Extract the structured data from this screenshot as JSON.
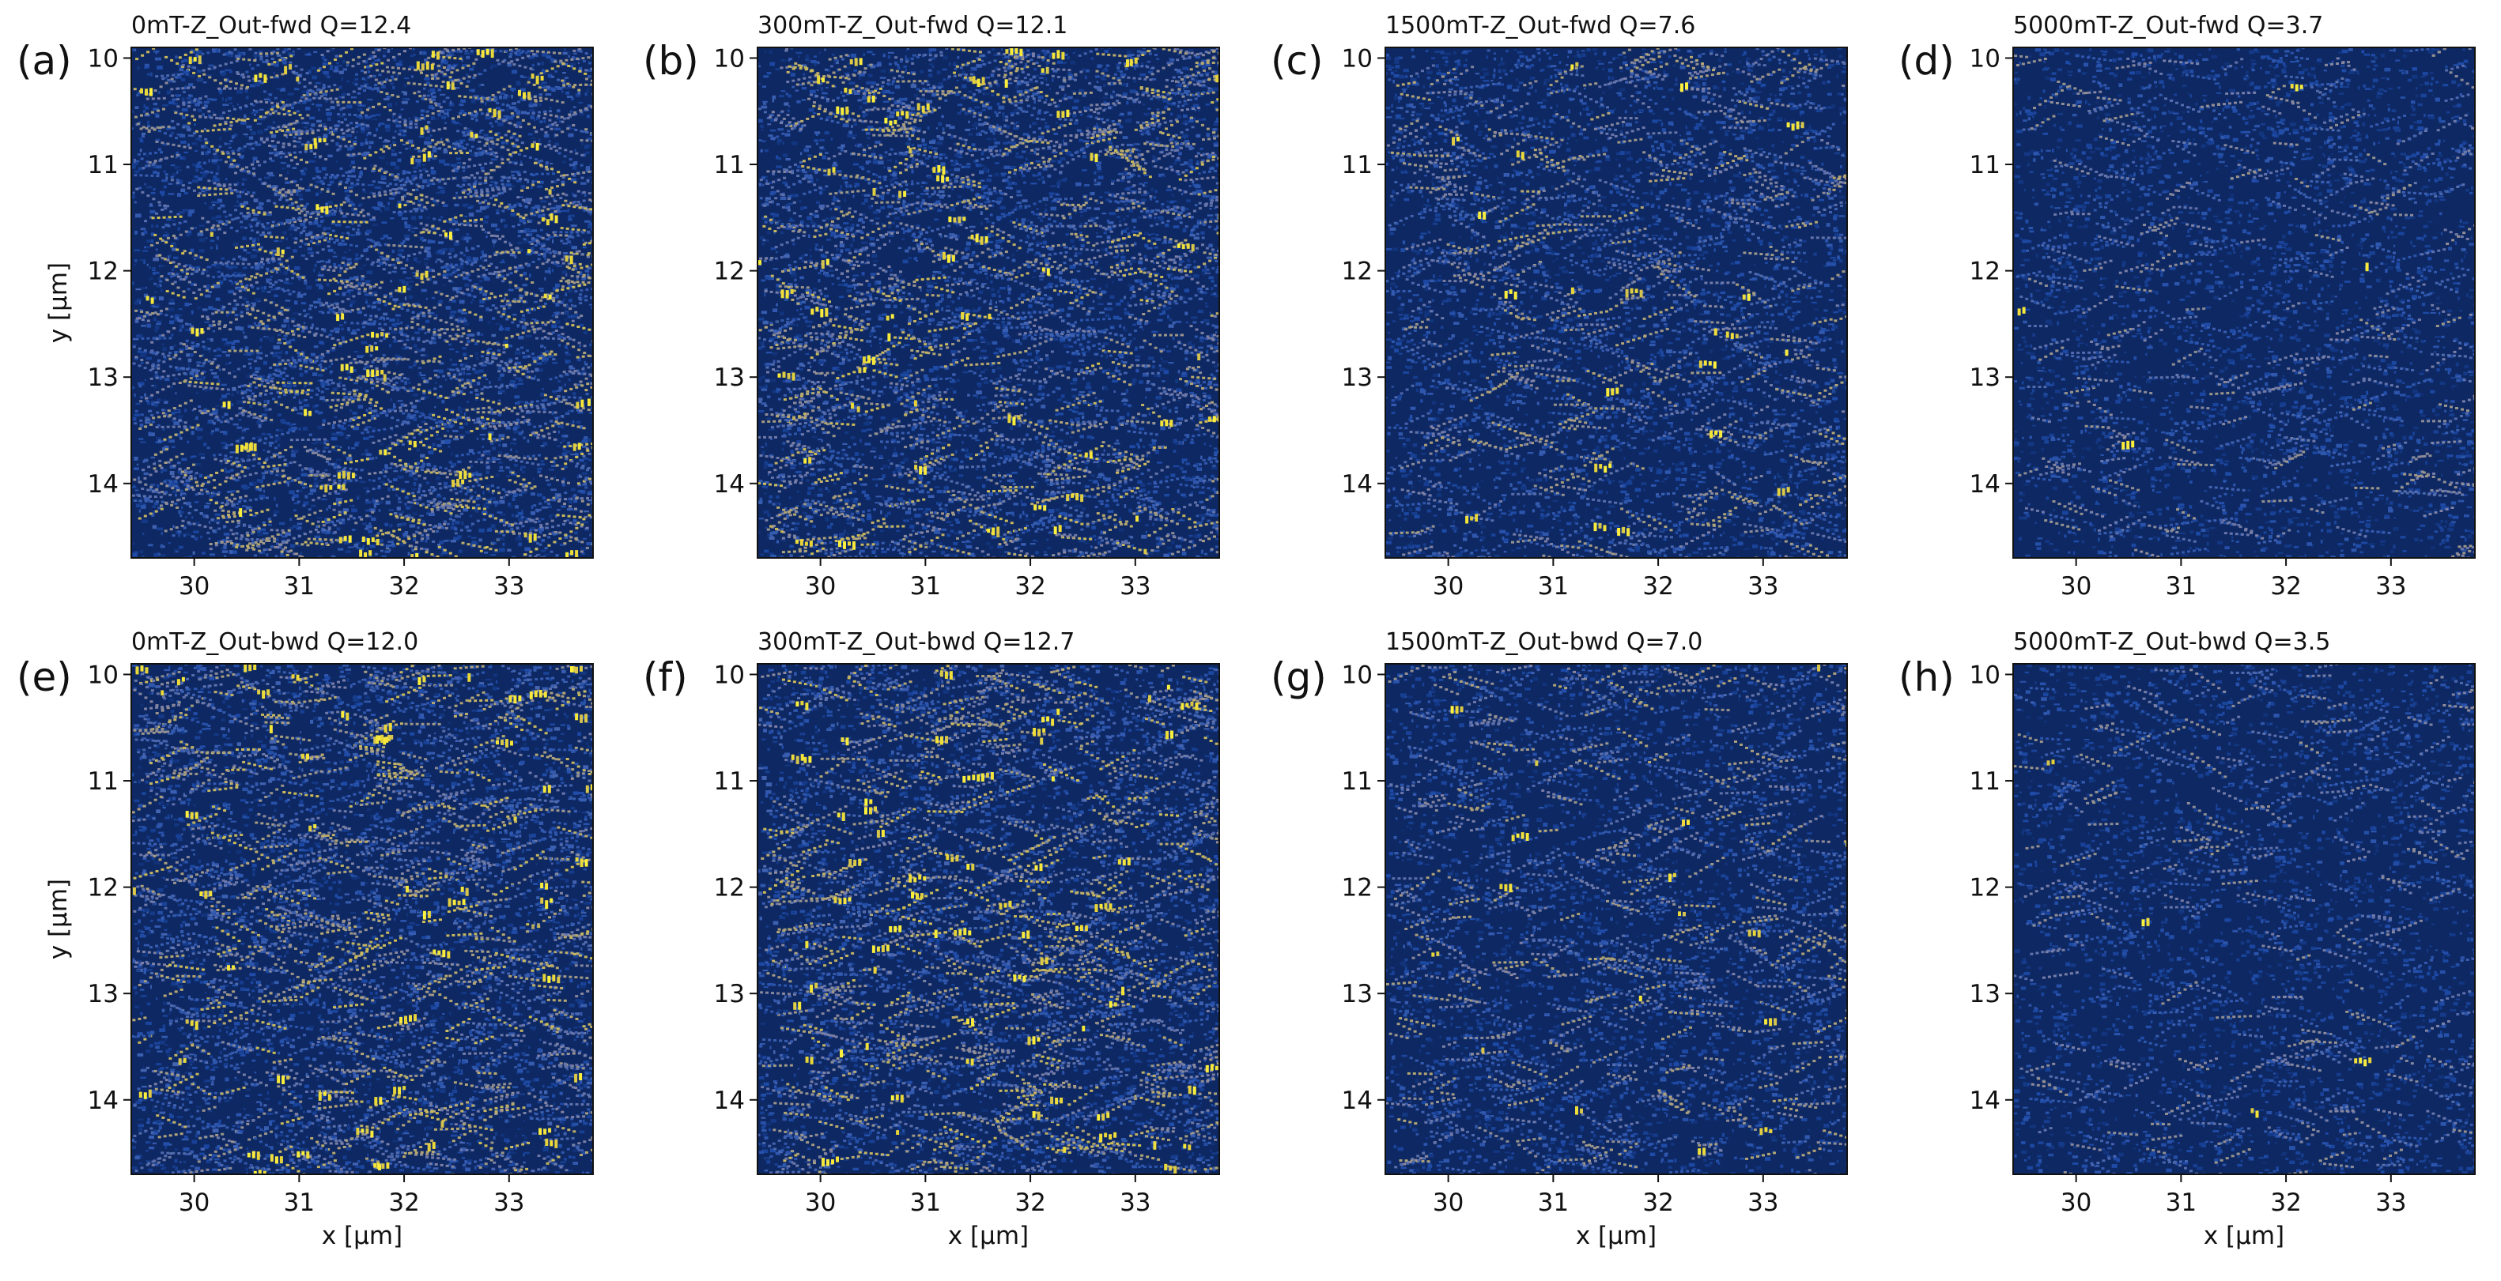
{
  "figure": {
    "colormap": [
      "#0b1f4e",
      "#12357f",
      "#1d4aa6",
      "#3a5fb2",
      "#7c80a6",
      "#b8a970",
      "#e6d33a",
      "#fff23c"
    ]
  },
  "chart_data": [
    {
      "panel": "(a)",
      "title": "0mT-Z_Out-fwd   Q=12.4",
      "type": "heatmap",
      "xlabel": "",
      "ylabel": "y [µm]",
      "xlim": [
        29.4,
        33.8
      ],
      "ylim": [
        14.7,
        9.9
      ],
      "xticks": [
        "30",
        "31",
        "32",
        "33"
      ],
      "yticks": [
        "10",
        "11",
        "12",
        "13",
        "14"
      ],
      "intensity": 0.95
    },
    {
      "panel": "(b)",
      "title": "300mT-Z_Out-fwd   Q=12.1",
      "type": "heatmap",
      "xlabel": "",
      "ylabel": "",
      "xlim": [
        29.4,
        33.8
      ],
      "ylim": [
        14.7,
        9.9
      ],
      "xticks": [
        "30",
        "31",
        "32",
        "33"
      ],
      "yticks": [
        "10",
        "11",
        "12",
        "13",
        "14"
      ],
      "intensity": 0.93
    },
    {
      "panel": "(c)",
      "title": "1500mT-Z_Out-fwd   Q=7.6",
      "type": "heatmap",
      "xlabel": "",
      "ylabel": "",
      "xlim": [
        29.4,
        33.8
      ],
      "ylim": [
        14.7,
        9.9
      ],
      "xticks": [
        "30",
        "31",
        "32",
        "33"
      ],
      "yticks": [
        "10",
        "11",
        "12",
        "13",
        "14"
      ],
      "intensity": 0.58
    },
    {
      "panel": "(d)",
      "title": "5000mT-Z_Out-fwd   Q=3.7",
      "type": "heatmap",
      "xlabel": "",
      "ylabel": "",
      "xlim": [
        29.4,
        33.8
      ],
      "ylim": [
        14.7,
        9.9
      ],
      "xticks": [
        "30",
        "31",
        "32",
        "33"
      ],
      "yticks": [
        "10",
        "11",
        "12",
        "13",
        "14"
      ],
      "intensity": 0.28
    },
    {
      "panel": "(e)",
      "title": "0mT-Z_Out-bwd   Q=12.0",
      "type": "heatmap",
      "xlabel": "x [µm]",
      "ylabel": "y [µm]",
      "xlim": [
        29.4,
        33.8
      ],
      "ylim": [
        14.7,
        9.9
      ],
      "xticks": [
        "30",
        "31",
        "32",
        "33"
      ],
      "yticks": [
        "10",
        "11",
        "12",
        "13",
        "14"
      ],
      "intensity": 0.92
    },
    {
      "panel": "(f)",
      "title": "300mT-Z_Out-bwd   Q=12.7",
      "type": "heatmap",
      "xlabel": "x [µm]",
      "ylabel": "",
      "xlim": [
        29.4,
        33.8
      ],
      "ylim": [
        14.7,
        9.9
      ],
      "xticks": [
        "30",
        "31",
        "32",
        "33"
      ],
      "yticks": [
        "10",
        "11",
        "12",
        "13",
        "14"
      ],
      "intensity": 0.97
    },
    {
      "panel": "(g)",
      "title": "1500mT-Z_Out-bwd   Q=7.0",
      "type": "heatmap",
      "xlabel": "x [µm]",
      "ylabel": "",
      "xlim": [
        29.4,
        33.8
      ],
      "ylim": [
        14.7,
        9.9
      ],
      "xticks": [
        "30",
        "31",
        "32",
        "33"
      ],
      "yticks": [
        "10",
        "11",
        "12",
        "13",
        "14"
      ],
      "intensity": 0.54
    },
    {
      "panel": "(h)",
      "title": "5000mT-Z_Out-bwd   Q=3.5",
      "type": "heatmap",
      "xlabel": "x [µm]",
      "ylabel": "",
      "xlim": [
        29.4,
        33.8
      ],
      "ylim": [
        14.7,
        9.9
      ],
      "xticks": [
        "30",
        "31",
        "32",
        "33"
      ],
      "yticks": [
        "10",
        "11",
        "12",
        "13",
        "14"
      ],
      "intensity": 0.26
    }
  ]
}
